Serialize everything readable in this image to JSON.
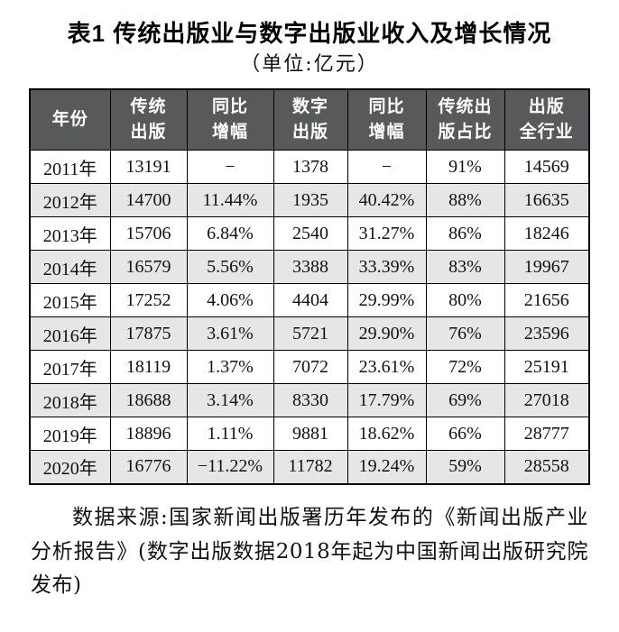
{
  "caption": "表1 传统出版业与数字出版业收入及增长情况",
  "unit_line": "（单位:亿元）",
  "table": {
    "columns": [
      "年份",
      "传统\n出版",
      "同比\n增幅",
      "数字\n出版",
      "同比\n增幅",
      "传统出\n版占比",
      "出版\n全行业"
    ],
    "rows": [
      [
        "2011年",
        "13191",
        "−",
        "1378",
        "−",
        "91%",
        "14569"
      ],
      [
        "2012年",
        "14700",
        "11.44%",
        "1935",
        "40.42%",
        "88%",
        "16635"
      ],
      [
        "2013年",
        "15706",
        "6.84%",
        "2540",
        "31.27%",
        "86%",
        "18246"
      ],
      [
        "2014年",
        "16579",
        "5.56%",
        "3388",
        "33.39%",
        "83%",
        "19967"
      ],
      [
        "2015年",
        "17252",
        "4.06%",
        "4404",
        "29.99%",
        "80%",
        "21656"
      ],
      [
        "2016年",
        "17875",
        "3.61%",
        "5721",
        "29.90%",
        "76%",
        "23596"
      ],
      [
        "2017年",
        "18119",
        "1.37%",
        "7072",
        "23.61%",
        "72%",
        "25191"
      ],
      [
        "2018年",
        "18688",
        "3.14%",
        "8330",
        "17.79%",
        "69%",
        "27018"
      ],
      [
        "2019年",
        "18896",
        "1.11%",
        "9881",
        "18.62%",
        "66%",
        "28777"
      ],
      [
        "2020年",
        "16776",
        "−11.22%",
        "11782",
        "19.24%",
        "59%",
        "28558"
      ]
    ]
  },
  "footnote": "数据来源:国家新闻出版署历年发布的《新闻出版产业分析报告》(数字出版数据2018年起为中国新闻出版研究院发布)",
  "colors": {
    "header_bg": "#58595b",
    "stripe_bg": "#e6e6e7",
    "border": "#000000"
  }
}
